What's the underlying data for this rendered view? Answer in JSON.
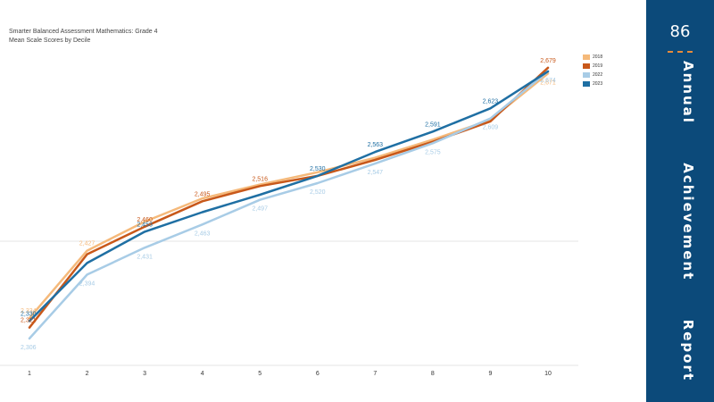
{
  "page": {
    "number": "86",
    "side_title": "Annual      Achievement      Report"
  },
  "chart_data": {
    "type": "line",
    "title": "Smarter Balanced Assessment Mathematics: Grade 4",
    "subtitle": "Mean Scale Scores by Decile",
    "xlabel": "",
    "ylabel": "",
    "categories": [
      "1",
      "2",
      "3",
      "4",
      "5",
      "6",
      "7",
      "8",
      "9",
      "10"
    ],
    "ylim": [
      2280,
      2680
    ],
    "grid": "horizontal",
    "legend_position": "top-right",
    "series": [
      {
        "name": "2018",
        "color": "#f5b97a",
        "values": [
          2334,
          2427,
          2467,
          2499,
          2518,
          2535,
          2555,
          2580,
          2607,
          2671
        ]
      },
      {
        "name": "2019",
        "color": "#c8581a",
        "values": [
          2321,
          2422,
          2460,
          2495,
          2516,
          2530,
          2552,
          2577,
          2605,
          2679
        ]
      },
      {
        "name": "2022",
        "color": "#a8cce6",
        "values": [
          2306,
          2394,
          2431,
          2463,
          2497,
          2520,
          2547,
          2575,
          2609,
          2674
        ]
      },
      {
        "name": "2023",
        "color": "#1f6fa3",
        "values": [
          2330,
          2410,
          2453,
          2480,
          2504,
          2530,
          2563,
          2591,
          2623,
          2674
        ]
      }
    ],
    "data_labels": [
      {
        "series": "2018",
        "index": 0,
        "text": "2,334"
      },
      {
        "series": "2018",
        "index": 1,
        "text": "2,427"
      },
      {
        "series": "2018",
        "index": 9,
        "text": "2,671"
      },
      {
        "series": "2019",
        "index": 0,
        "text": "2,321"
      },
      {
        "series": "2019",
        "index": 2,
        "text": "2,460"
      },
      {
        "series": "2019",
        "index": 3,
        "text": "2,495"
      },
      {
        "series": "2019",
        "index": 4,
        "text": "2,516"
      },
      {
        "series": "2019",
        "index": 9,
        "text": "2,679"
      },
      {
        "series": "2022",
        "index": 0,
        "text": "2,306"
      },
      {
        "series": "2022",
        "index": 1,
        "text": "2,394"
      },
      {
        "series": "2022",
        "index": 2,
        "text": "2,431"
      },
      {
        "series": "2022",
        "index": 3,
        "text": "2,463"
      },
      {
        "series": "2022",
        "index": 4,
        "text": "2,497"
      },
      {
        "series": "2022",
        "index": 5,
        "text": "2,520"
      },
      {
        "series": "2022",
        "index": 6,
        "text": "2,547"
      },
      {
        "series": "2022",
        "index": 7,
        "text": "2,575"
      },
      {
        "series": "2022",
        "index": 8,
        "text": "2,609"
      },
      {
        "series": "2022",
        "index": 9,
        "text": "2,674"
      },
      {
        "series": "2023",
        "index": 0,
        "text": "2,330"
      },
      {
        "series": "2023",
        "index": 2,
        "text": "2,453"
      },
      {
        "series": "2023",
        "index": 5,
        "text": "2,530"
      },
      {
        "series": "2023",
        "index": 6,
        "text": "2,563"
      },
      {
        "series": "2023",
        "index": 7,
        "text": "2,591"
      },
      {
        "series": "2023",
        "index": 8,
        "text": "2,623"
      }
    ]
  }
}
